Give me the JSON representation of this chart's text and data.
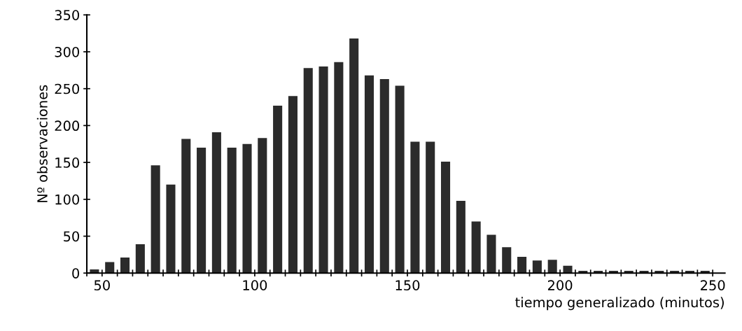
{
  "chart_data": {
    "type": "histogram",
    "xlabel": "tiempo generalizado (minutos)",
    "ylabel": "Nº observaciones",
    "color": "#2b2b2b",
    "bins": [
      45,
      50,
      55,
      60,
      65,
      70,
      75,
      80,
      85,
      90,
      95,
      100,
      105,
      110,
      115,
      120,
      125,
      130,
      135,
      140,
      145,
      150,
      155,
      160,
      165,
      170,
      175,
      180,
      185,
      190,
      195,
      200,
      205,
      210,
      215,
      220,
      225,
      230,
      235,
      240,
      245,
      250
    ],
    "values": [
      5,
      15,
      21,
      39,
      146,
      120,
      182,
      170,
      191,
      170,
      175,
      183,
      227,
      240,
      278,
      280,
      286,
      318,
      268,
      263,
      254,
      178,
      178,
      151,
      98,
      70,
      52,
      35,
      22,
      17,
      18,
      10,
      3,
      3,
      3,
      3,
      3,
      3,
      3,
      3,
      3
    ],
    "xlim": [
      45,
      254
    ],
    "ylim": [
      0,
      350
    ],
    "xticks": [
      {
        "value": 45,
        "label": null
      },
      50,
      {
        "value": 55,
        "label": null
      },
      {
        "value": 60,
        "label": null
      },
      {
        "value": 65,
        "label": null
      },
      {
        "value": 70,
        "label": null
      },
      {
        "value": 75,
        "label": null
      },
      {
        "value": 80,
        "label": null
      },
      {
        "value": 85,
        "label": null
      },
      {
        "value": 90,
        "label": null
      },
      {
        "value": 95,
        "label": null
      },
      100,
      {
        "value": 105,
        "label": null
      },
      {
        "value": 110,
        "label": null
      },
      {
        "value": 115,
        "label": null
      },
      {
        "value": 120,
        "label": null
      },
      {
        "value": 125,
        "label": null
      },
      {
        "value": 130,
        "label": null
      },
      {
        "value": 135,
        "label": null
      },
      {
        "value": 140,
        "label": null
      },
      {
        "value": 145,
        "label": null
      },
      150,
      {
        "value": 155,
        "label": null
      },
      {
        "value": 160,
        "label": null
      },
      {
        "value": 165,
        "label": null
      },
      {
        "value": 170,
        "label": null
      },
      {
        "value": 175,
        "label": null
      },
      {
        "value": 180,
        "label": null
      },
      {
        "value": 185,
        "label": null
      },
      {
        "value": 190,
        "label": null
      },
      {
        "value": 195,
        "label": null
      },
      200,
      {
        "value": 205,
        "label": null
      },
      {
        "value": 210,
        "label": null
      },
      {
        "value": 215,
        "label": null
      },
      {
        "value": 220,
        "label": null
      },
      {
        "value": 225,
        "label": null
      },
      {
        "value": 230,
        "label": null
      },
      {
        "value": 235,
        "label": null
      },
      {
        "value": 240,
        "label": null
      },
      {
        "value": 245,
        "label": null
      },
      250
    ],
    "yticks": [
      0,
      50,
      100,
      150,
      200,
      250,
      300,
      350
    ],
    "grid": false
  }
}
